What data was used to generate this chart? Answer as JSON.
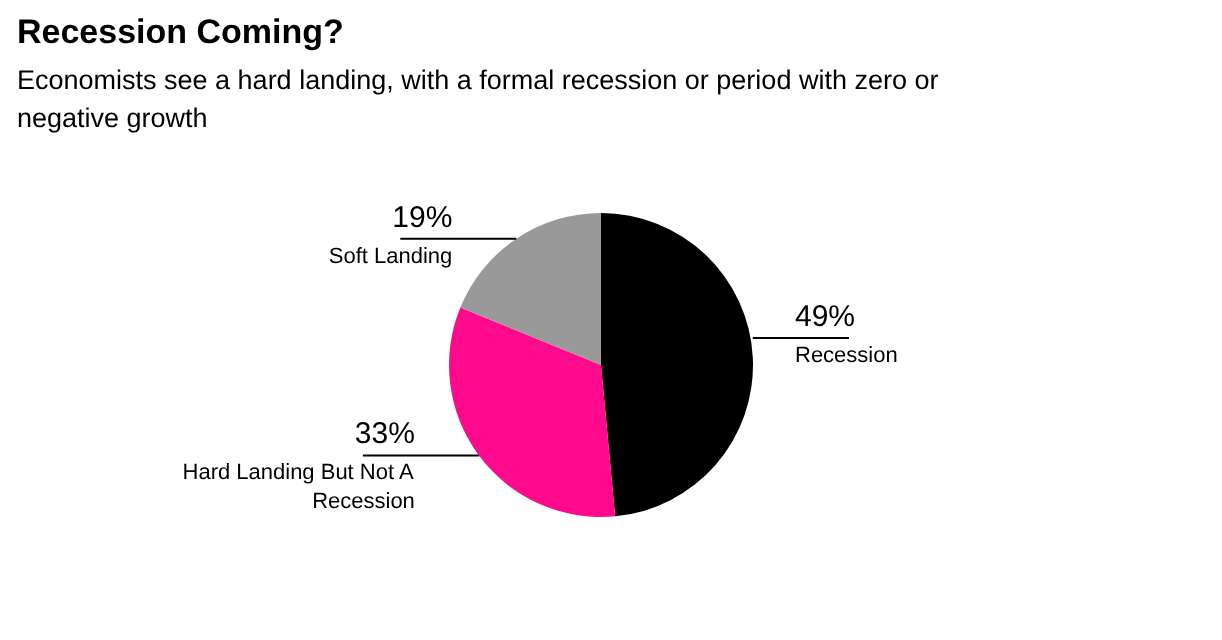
{
  "chart_data": {
    "type": "pie",
    "title": "Recession Coming?",
    "subtitle": "Economists see a hard landing, with a formal recession or period with zero or negative growth",
    "categories": [
      "Recession",
      "Hard Landing But Not A Recession",
      "Soft Landing"
    ],
    "values": [
      49,
      33,
      19
    ],
    "value_labels": [
      "49%",
      "33%",
      "19%"
    ],
    "colors": [
      "#000000",
      "#ff0a8c",
      "#999999"
    ]
  }
}
